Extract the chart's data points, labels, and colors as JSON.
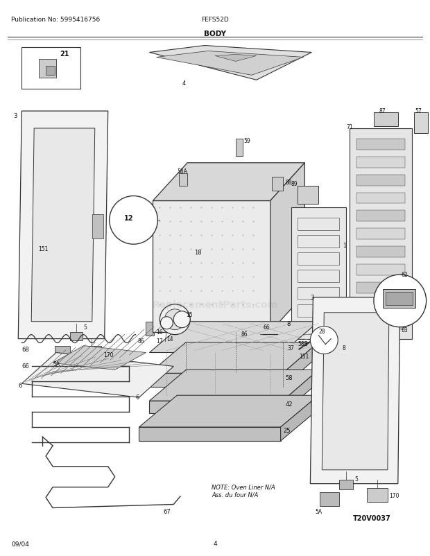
{
  "title_center": "BODY",
  "title_left": "Publication No: 5995416756",
  "title_right": "FEFS52D",
  "footer_left": "09/04",
  "footer_center": "4",
  "note_text": "NOTE: Oven Liner N/A\nAss. du four N/A",
  "t20": "T20V0037",
  "bg_color": "#ffffff",
  "lc": "#333333",
  "tc": "#111111",
  "wm_text": "ReplacementParts.com",
  "wm_alpha": 0.15,
  "wm_size": 10
}
